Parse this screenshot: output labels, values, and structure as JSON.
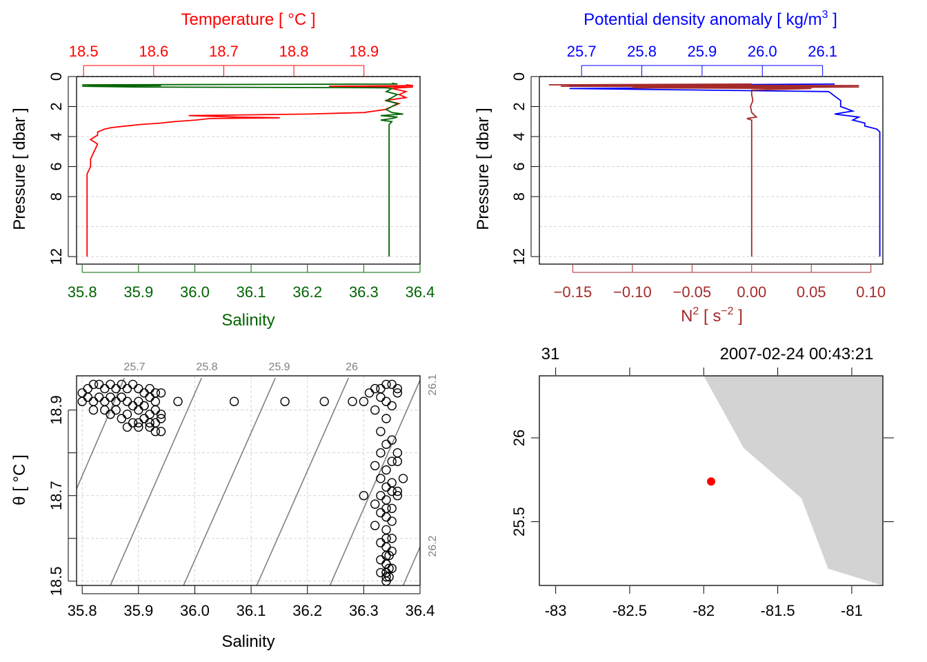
{
  "colors": {
    "temperature": "#ff0000",
    "salinity": "#006400",
    "density": "#0000ff",
    "n2": "#a52a2a",
    "grid": "#d3d3d3",
    "isopycnal": "#808080",
    "land": "#d3d3d3",
    "station": "#ff0000"
  },
  "chart_data": [
    {
      "id": "ts_profile",
      "type": "line",
      "title": "Temperature [ °C ]",
      "xlabel": "Salinity",
      "ylabel": "Pressure [ dbar ]",
      "top_ticks": [
        "18.5",
        "18.6",
        "18.7",
        "18.8",
        "18.9"
      ],
      "bottom_ticks": [
        "35.8",
        "35.9",
        "36.0",
        "36.1",
        "36.2",
        "36.3",
        "36.4"
      ],
      "left_ticks": [
        "0",
        "2",
        "4",
        "6",
        "8",
        "12"
      ],
      "temp_lim": [
        18.49,
        18.98
      ],
      "sal_lim": [
        35.79,
        36.4
      ],
      "p_lim": [
        0,
        12.5
      ],
      "series": [
        {
          "name": "Temperature",
          "y": [
            0.55,
            0.6,
            0.65,
            0.7,
            0.75,
            0.8,
            1.0,
            1.2,
            1.4,
            1.6,
            1.8,
            2.0,
            2.2,
            2.4,
            2.5,
            2.6,
            2.7,
            2.75,
            2.8,
            2.9,
            3.0,
            3.1,
            3.2,
            3.3,
            3.4,
            3.5,
            3.7,
            3.9,
            4.2,
            4.5,
            5.0,
            5.5,
            6.0,
            6.5,
            7.0,
            8.0,
            9.0,
            10.0,
            11.0,
            12.0
          ],
          "x": [
            18.96,
            18.97,
            18.85,
            18.97,
            18.95,
            18.94,
            18.96,
            18.95,
            18.96,
            18.93,
            18.95,
            18.94,
            18.93,
            18.9,
            18.82,
            18.65,
            18.72,
            18.78,
            18.68,
            18.66,
            18.63,
            18.61,
            18.58,
            18.56,
            18.54,
            18.53,
            18.52,
            18.52,
            18.51,
            18.52,
            18.515,
            18.51,
            18.51,
            18.505,
            18.505,
            18.505,
            18.505,
            18.505,
            18.505,
            18.505
          ]
        },
        {
          "name": "Salinity",
          "y": [
            0.45,
            0.5,
            0.55,
            0.6,
            0.65,
            0.7,
            0.75,
            0.8,
            1.0,
            1.2,
            1.4,
            1.6,
            1.8,
            2.0,
            2.2,
            2.4,
            2.5,
            2.6,
            2.7,
            2.8,
            2.9,
            3.0,
            3.2,
            3.5,
            4.0,
            5.0,
            6.0,
            7.0,
            8.0,
            9.0,
            10.0,
            11.0,
            12.0
          ],
          "x": [
            36.35,
            36.36,
            35.8,
            35.94,
            35.8,
            35.9,
            36.34,
            36.35,
            36.34,
            36.36,
            36.35,
            36.34,
            36.36,
            36.35,
            36.34,
            36.35,
            36.37,
            36.33,
            36.36,
            36.35,
            36.33,
            36.35,
            36.345,
            36.345,
            36.345,
            36.345,
            36.345,
            36.345,
            36.345,
            36.345,
            36.345,
            36.345,
            36.345
          ]
        }
      ]
    },
    {
      "id": "density_profile",
      "type": "line",
      "title": "Potential density anomaly [ kg/m",
      "title_sup": "3",
      "title_end": " ]",
      "xlabel": "N",
      "xlabel_sup": "2",
      "xlabel_mid": " [ s",
      "xlabel_sup2": "−2",
      "xlabel_end": " ]",
      "ylabel": "Pressure [ dbar ]",
      "top_ticks": [
        "25.7",
        "25.8",
        "25.9",
        "26.0",
        "26.1"
      ],
      "bottom_ticks": [
        "−0.15",
        "−0.10",
        "−0.05",
        "0.00",
        "0.05",
        "0.10"
      ],
      "left_ticks": [
        "0",
        "2",
        "4",
        "6",
        "8",
        "12"
      ],
      "sigma_lim": [
        25.63,
        26.2
      ],
      "n2_lim": [
        -0.178,
        0.11
      ],
      "p_lim": [
        0,
        12.5
      ],
      "series": [
        {
          "name": "Density",
          "y": [
            0.5,
            0.6,
            0.7,
            0.8,
            1.0,
            1.3,
            1.6,
            2.0,
            2.3,
            2.5,
            2.7,
            2.9,
            3.1,
            3.3,
            3.5,
            3.7,
            4.0,
            5.0,
            6.0,
            7.0,
            8.0,
            9.0,
            10.0,
            11.0,
            12.0
          ],
          "x": [
            26.12,
            25.68,
            26.1,
            25.68,
            26.11,
            26.12,
            26.13,
            26.13,
            26.15,
            26.12,
            26.16,
            26.15,
            26.17,
            26.17,
            26.19,
            26.195,
            26.195,
            26.195,
            26.195,
            26.195,
            26.195,
            26.195,
            26.195,
            26.195,
            26.195
          ]
        },
        {
          "name": "N2",
          "y": [
            0.5,
            0.55,
            0.6,
            0.65,
            0.7,
            0.75,
            0.8,
            0.9,
            1.2,
            1.6,
            2.0,
            2.4,
            2.7,
            2.8,
            2.9,
            3.2,
            4.0,
            6.0,
            8.0,
            10.0,
            12.0
          ],
          "x": [
            0.0,
            -0.17,
            0.09,
            -0.16,
            0.09,
            -0.1,
            0.05,
            0.0,
            0.0,
            0.001,
            -0.001,
            0.0,
            0.004,
            -0.004,
            0.0,
            0.0,
            0.0,
            0.0,
            0.0,
            0.0,
            0.0
          ]
        }
      ]
    },
    {
      "id": "ts_diagram",
      "type": "scatter",
      "xlabel": "Salinity",
      "ylabel": "θ [ °C ]",
      "bottom_ticks": [
        "35.8",
        "35.9",
        "36.0",
        "36.1",
        "36.2",
        "36.3",
        "36.4"
      ],
      "left_ticks": [
        "18.5",
        "18.7",
        "18.9"
      ],
      "xlim": [
        35.79,
        36.4
      ],
      "ylim": [
        18.49,
        18.98
      ],
      "isopycnal_labels": [
        "25.7",
        "25.8",
        "25.9",
        "26",
        "26.1",
        "26.2"
      ],
      "isopycnals": [
        {
          "label": "25.7",
          "x0": 35.775,
          "y0": 18.67,
          "x1": 35.875,
          "y1": 18.975
        },
        {
          "label": "25.8",
          "x0": 35.85,
          "y0": 18.49,
          "x1": 36.012,
          "y1": 18.975
        },
        {
          "label": "25.9",
          "x0": 35.98,
          "y0": 18.49,
          "x1": 36.143,
          "y1": 18.975
        },
        {
          "label": "26",
          "x0": 36.11,
          "y0": 18.49,
          "x1": 36.273,
          "y1": 18.975
        },
        {
          "label": "26.1",
          "x0": 36.24,
          "y0": 18.49,
          "x1": 36.4,
          "y1": 18.97
        },
        {
          "label": "26.2",
          "x0": 36.37,
          "y0": 18.49,
          "x1": 36.4,
          "y1": 18.58
        }
      ],
      "points": {
        "salinity": [
          35.8,
          35.81,
          35.82,
          35.83,
          35.84,
          35.85,
          35.86,
          35.87,
          35.88,
          35.89,
          35.9,
          35.91,
          35.92,
          35.93,
          35.94,
          35.81,
          35.82,
          35.83,
          35.84,
          35.85,
          35.86,
          35.87,
          35.88,
          35.89,
          35.9,
          35.91,
          35.92,
          35.93,
          35.8,
          35.82,
          35.84,
          35.86,
          35.88,
          35.9,
          35.92,
          35.94,
          35.85,
          35.87,
          35.89,
          35.91,
          35.93,
          35.88,
          35.9,
          35.92,
          35.93,
          35.94,
          35.9,
          35.92,
          35.94,
          35.91,
          35.93,
          35.97,
          36.07,
          36.16,
          36.23,
          36.28,
          36.3,
          36.31,
          36.32,
          36.33,
          36.34,
          36.35,
          36.36,
          36.33,
          36.34,
          36.35,
          36.36,
          36.32,
          36.34,
          36.33,
          36.35,
          36.34,
          36.36,
          36.33,
          36.35,
          36.32,
          36.34,
          36.36,
          36.33,
          36.35,
          36.37,
          36.34,
          36.36,
          36.33,
          36.35,
          36.34,
          36.32,
          36.36,
          36.34,
          36.33,
          36.35,
          36.34,
          36.3,
          36.32,
          36.35,
          36.34,
          36.35,
          36.34,
          36.33,
          36.34,
          36.35,
          36.34,
          36.33,
          36.34,
          36.35,
          36.34,
          36.33,
          36.34,
          36.345,
          36.34,
          36.345,
          36.34,
          36.345,
          36.34
        ],
        "theta": [
          18.94,
          18.95,
          18.96,
          18.96,
          18.95,
          18.96,
          18.95,
          18.96,
          18.95,
          18.96,
          18.95,
          18.94,
          18.95,
          18.94,
          18.94,
          18.93,
          18.92,
          18.93,
          18.92,
          18.93,
          18.92,
          18.93,
          18.92,
          18.91,
          18.92,
          18.91,
          18.93,
          18.92,
          18.92,
          18.9,
          18.9,
          18.9,
          18.89,
          18.9,
          18.89,
          18.89,
          18.89,
          18.88,
          18.87,
          18.88,
          18.87,
          18.86,
          18.86,
          18.86,
          18.85,
          18.85,
          18.87,
          18.87,
          18.88,
          18.91,
          18.9,
          18.92,
          18.92,
          18.92,
          18.92,
          18.92,
          18.92,
          18.94,
          18.95,
          18.95,
          18.96,
          18.96,
          18.95,
          18.93,
          18.92,
          18.91,
          18.94,
          18.9,
          18.88,
          18.85,
          18.83,
          18.82,
          18.8,
          18.8,
          18.78,
          18.77,
          18.76,
          18.78,
          18.74,
          18.73,
          18.74,
          18.72,
          18.71,
          18.7,
          18.71,
          18.69,
          18.68,
          18.7,
          18.67,
          18.66,
          18.67,
          18.65,
          18.7,
          18.63,
          18.64,
          18.62,
          18.6,
          18.6,
          18.59,
          18.58,
          18.57,
          18.56,
          18.55,
          18.54,
          18.53,
          18.52,
          18.52,
          18.51,
          18.56,
          18.54,
          18.53,
          18.52,
          18.51,
          18.5
        ]
      }
    },
    {
      "id": "station_map",
      "type": "map",
      "top_labels": [
        "31",
        "2007-02-24 00:43:21"
      ],
      "bottom_ticks": [
        "-83",
        "-82.5",
        "-82",
        "-81.5",
        "-81"
      ],
      "left_ticks": [
        "25.5",
        "26"
      ],
      "lon_lim": [
        -83.11,
        -80.79
      ],
      "lat_lim": [
        25.12,
        26.37
      ],
      "coastline": {
        "lon": [
          -82.0,
          -81.73,
          -81.34,
          -81.16,
          -80.79,
          -80.79
        ],
        "lat": [
          26.37,
          25.94,
          25.64,
          25.22,
          25.12,
          26.37
        ]
      },
      "station": {
        "lon": -81.95,
        "lat": 25.74
      }
    }
  ]
}
